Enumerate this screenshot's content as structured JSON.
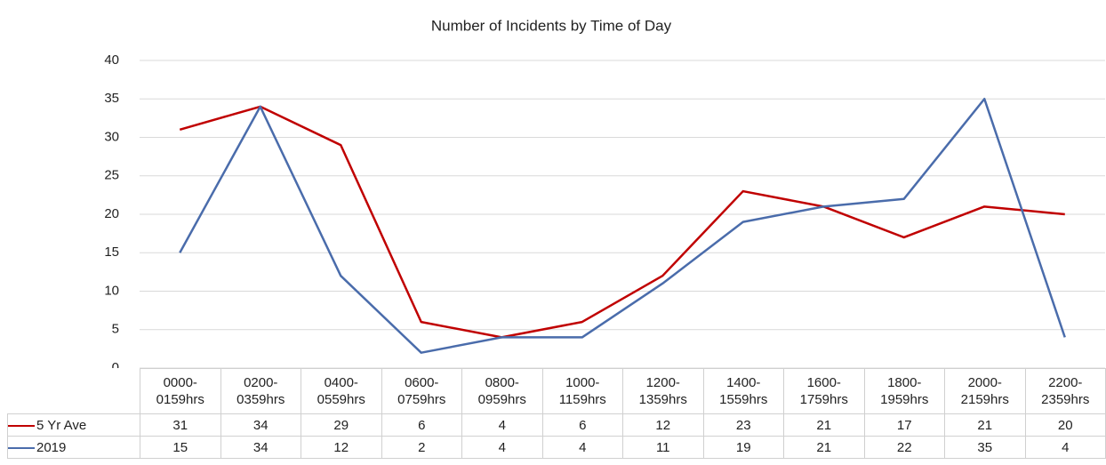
{
  "chart_data": {
    "type": "line",
    "title": "Number of Incidents by Time of Day",
    "categories": [
      "0000-0159hrs",
      "0200-0359hrs",
      "0400-0559hrs",
      "0600-0759hrs",
      "0800-0959hrs",
      "1000-1159hrs",
      "1200-1359hrs",
      "1400-1559hrs",
      "1600-1759hrs",
      "1800-1959hrs",
      "2000-2159hrs",
      "2200-2359hrs"
    ],
    "series": [
      {
        "name": "5 Yr Ave",
        "color": "#c00000",
        "values": [
          31,
          34,
          29,
          6,
          4,
          6,
          12,
          23,
          21,
          17,
          21,
          20
        ]
      },
      {
        "name": "2019",
        "color": "#4a6cab",
        "values": [
          15,
          34,
          12,
          2,
          4,
          4,
          11,
          19,
          21,
          22,
          35,
          4
        ]
      }
    ],
    "ylim": [
      0,
      40
    ],
    "yticks": [
      0,
      5,
      10,
      15,
      20,
      25,
      30,
      35,
      40
    ],
    "grid": true
  }
}
